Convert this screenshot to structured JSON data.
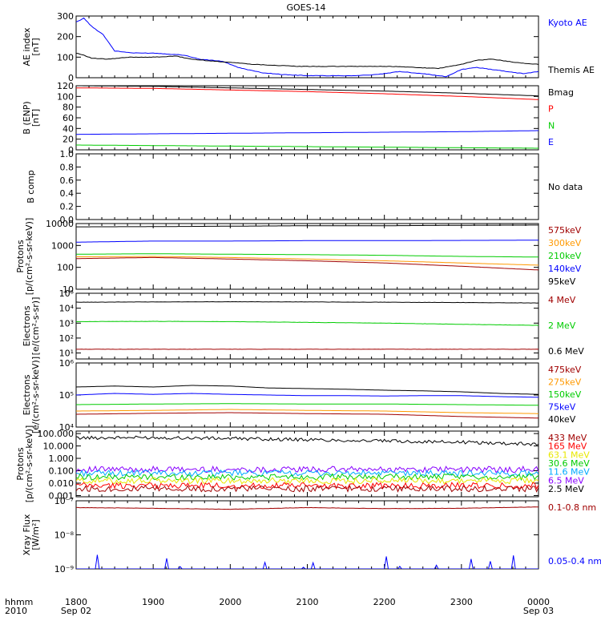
{
  "title": "GOES-14",
  "time_axis": {
    "row1_label": "hhmm",
    "row2_label": "2010",
    "ticks": [
      {
        "time": "1800",
        "date": "Sep 02"
      },
      {
        "time": "1900",
        "date": ""
      },
      {
        "time": "2000",
        "date": ""
      },
      {
        "time": "2100",
        "date": ""
      },
      {
        "time": "2200",
        "date": ""
      },
      {
        "time": "2300",
        "date": ""
      },
      {
        "time": "0000",
        "date": "Sep 03"
      }
    ],
    "range_hours": [
      18,
      24
    ]
  },
  "colors": {
    "black": "#000000",
    "blue": "#0000ff",
    "red": "#ff0000",
    "green": "#00cc00",
    "orange": "#ff9900",
    "darkred": "#a00000",
    "purple": "#8800ff",
    "cyan": "#00aaff",
    "yellow": "#e8e800",
    "magenta": "#aa00aa"
  },
  "chart_data": [
    {
      "id": "ae",
      "type": "line",
      "ylabel_lines": [
        "AE index",
        "[nT]"
      ],
      "ylim": [
        0,
        300
      ],
      "scale": "linear",
      "yticks": [
        "0",
        "100",
        "200",
        "300"
      ],
      "legend": [
        {
          "name": "Kyoto AE",
          "color": "blue"
        },
        {
          "name": "Themis AE",
          "color": "black"
        }
      ],
      "series": [
        {
          "name": "Kyoto AE",
          "color": "blue",
          "x": [
            18.0,
            18.1,
            18.2,
            18.35,
            18.5,
            18.75,
            19.0,
            19.2,
            19.4,
            19.6,
            19.9,
            20.1,
            20.4,
            20.7,
            21.0,
            21.3,
            21.6,
            21.9,
            22.2,
            22.5,
            22.8,
            23.0,
            23.2,
            23.4,
            23.6,
            23.8,
            24.0
          ],
          "y": [
            270,
            290,
            250,
            210,
            130,
            120,
            120,
            115,
            110,
            90,
            80,
            50,
            25,
            15,
            10,
            10,
            10,
            15,
            30,
            20,
            5,
            40,
            50,
            40,
            30,
            20,
            30
          ]
        },
        {
          "name": "Themis AE",
          "color": "black",
          "x": [
            18.0,
            18.1,
            18.2,
            18.4,
            18.7,
            19.0,
            19.3,
            19.5,
            19.8,
            20.0,
            20.3,
            20.6,
            20.9,
            21.2,
            21.5,
            21.8,
            22.1,
            22.4,
            22.7,
            23.0,
            23.2,
            23.4,
            23.6,
            23.8,
            24.0
          ],
          "y": [
            120,
            110,
            95,
            90,
            100,
            100,
            105,
            90,
            80,
            75,
            65,
            60,
            55,
            55,
            55,
            55,
            55,
            50,
            45,
            65,
            85,
            90,
            80,
            70,
            65
          ]
        }
      ]
    },
    {
      "id": "benp",
      "type": "line",
      "ylabel_lines": [
        "B (ENP)",
        "[nT]"
      ],
      "ylim": [
        0,
        120
      ],
      "scale": "linear",
      "yticks": [
        "0",
        "20",
        "40",
        "60",
        "80",
        "100",
        "120"
      ],
      "legend": [
        {
          "name": "Bmag",
          "color": "black"
        },
        {
          "name": "P",
          "color": "red"
        },
        {
          "name": "N",
          "color": "green"
        },
        {
          "name": "E",
          "color": "blue"
        }
      ],
      "series": [
        {
          "name": "Bmag",
          "color": "black",
          "x": [
            18.0,
            19.0,
            20.0,
            21.0,
            22.0,
            23.0,
            24.0
          ],
          "y": [
            120,
            119,
            116,
            113,
            110,
            106,
            101
          ]
        },
        {
          "name": "P",
          "color": "red",
          "x": [
            18.0,
            19.0,
            20.0,
            21.0,
            22.0,
            23.0,
            24.0
          ],
          "y": [
            116,
            115,
            112,
            109,
            105,
            100,
            94
          ]
        },
        {
          "name": "N",
          "color": "green",
          "x": [
            18.0,
            19.0,
            20.0,
            21.0,
            22.0,
            23.0,
            24.0
          ],
          "y": [
            9,
            8,
            7,
            6,
            5,
            4,
            3
          ]
        },
        {
          "name": "E",
          "color": "blue",
          "x": [
            18.0,
            19.0,
            20.0,
            21.0,
            22.0,
            23.0,
            24.0
          ],
          "y": [
            29,
            30,
            31,
            32,
            33,
            34,
            36
          ]
        }
      ]
    },
    {
      "id": "bcomp",
      "type": "line",
      "ylabel_lines": [
        "B comp"
      ],
      "ylim": [
        0,
        1
      ],
      "scale": "linear",
      "yticks": [
        "0.0",
        "0.2",
        "0.4",
        "0.6",
        "0.8",
        "1.0"
      ],
      "legend": [
        {
          "name": "No data",
          "color": "black"
        }
      ],
      "series": []
    },
    {
      "id": "protons1",
      "type": "line",
      "ylabel_lines": [
        "Protons",
        "[p/(cm²-s-sr-keV)]"
      ],
      "ylim": [
        1,
        4
      ],
      "scale": "log",
      "yticks": [
        "10",
        "100",
        "1000",
        "10000"
      ],
      "legend": [
        {
          "name": "575keV",
          "color": "darkred"
        },
        {
          "name": "300keV",
          "color": "orange"
        },
        {
          "name": "210keV",
          "color": "green"
        },
        {
          "name": "140keV",
          "color": "blue"
        },
        {
          "name": "95keV",
          "color": "black"
        }
      ],
      "series": [
        {
          "name": "95keV",
          "color": "black",
          "x": [
            18.0,
            19.0,
            20.0,
            21.0,
            22.0,
            23.0,
            24.0
          ],
          "y": [
            3.85,
            3.86,
            3.88,
            3.9,
            3.9,
            3.92,
            3.93
          ]
        },
        {
          "name": "140keV",
          "color": "blue",
          "x": [
            18.0,
            19.0,
            20.0,
            21.0,
            22.0,
            23.0,
            24.0
          ],
          "y": [
            3.15,
            3.2,
            3.2,
            3.22,
            3.22,
            3.23,
            3.24
          ]
        },
        {
          "name": "210keV",
          "color": "green",
          "x": [
            18.0,
            19.0,
            20.0,
            21.0,
            22.0,
            23.0,
            24.0
          ],
          "y": [
            2.6,
            2.62,
            2.6,
            2.58,
            2.55,
            2.5,
            2.47
          ]
        },
        {
          "name": "300keV",
          "color": "orange",
          "x": [
            18.0,
            19.0,
            20.0,
            21.0,
            22.0,
            23.0,
            24.0
          ],
          "y": [
            2.48,
            2.5,
            2.45,
            2.38,
            2.3,
            2.2,
            2.1
          ]
        },
        {
          "name": "575keV",
          "color": "darkred",
          "x": [
            18.0,
            19.0,
            20.0,
            21.0,
            22.0,
            23.0,
            24.0
          ],
          "y": [
            2.4,
            2.45,
            2.38,
            2.3,
            2.2,
            2.05,
            1.88
          ]
        }
      ]
    },
    {
      "id": "electrons1",
      "type": "line",
      "ylabel_lines": [
        "Electrons",
        "[e/(cm²-s-sr)]"
      ],
      "ylim": [
        0.6,
        5
      ],
      "scale": "log",
      "yticks": [
        "10¹",
        "10²",
        "10³",
        "10⁴",
        "10⁵"
      ],
      "legend": [
        {
          "name": "4 MeV",
          "color": "darkred"
        },
        {
          "name": "2 MeV",
          "color": "green"
        },
        {
          "name": "0.6 MeV",
          "color": "black"
        }
      ],
      "series": [
        {
          "name": "0.6 MeV",
          "color": "black",
          "x": [
            18.0,
            19.0,
            20.0,
            21.0,
            22.0,
            23.0,
            24.0
          ],
          "y": [
            4.4,
            4.42,
            4.43,
            4.42,
            4.4,
            4.38,
            4.35
          ]
        },
        {
          "name": "2 MeV",
          "color": "green",
          "x": [
            18.0,
            19.0,
            20.0,
            21.0,
            22.0,
            23.0,
            24.0
          ],
          "y": [
            3.1,
            3.12,
            3.1,
            3.05,
            3.0,
            2.92,
            2.85
          ]
        },
        {
          "name": "4 MeV",
          "color": "darkred",
          "x": [
            18.0,
            24.0
          ],
          "y": [
            1.25,
            1.25
          ]
        }
      ]
    },
    {
      "id": "electrons2",
      "type": "line",
      "ylabel_lines": [
        "Electrons",
        "[e/(cm²-s-sr-keV)]"
      ],
      "ylim": [
        4,
        6
      ],
      "scale": "log",
      "yticks": [
        "10⁴",
        "10⁵",
        "10⁶"
      ],
      "legend": [
        {
          "name": "475keV",
          "color": "darkred"
        },
        {
          "name": "275keV",
          "color": "orange"
        },
        {
          "name": "150keV",
          "color": "green"
        },
        {
          "name": "75keV",
          "color": "blue"
        },
        {
          "name": "40keV",
          "color": "black"
        }
      ],
      "series": [
        {
          "name": "40keV",
          "color": "black",
          "x": [
            18.0,
            18.5,
            19.0,
            19.5,
            20.0,
            20.5,
            21.0,
            21.5,
            22.0,
            22.5,
            23.0,
            23.5,
            24.0
          ],
          "y": [
            5.25,
            5.28,
            5.25,
            5.3,
            5.28,
            5.22,
            5.2,
            5.18,
            5.15,
            5.13,
            5.1,
            5.05,
            5.02
          ]
        },
        {
          "name": "75keV",
          "color": "blue",
          "x": [
            18.0,
            18.5,
            19.0,
            19.5,
            20.0,
            20.5,
            21.0,
            21.5,
            22.0,
            22.5,
            23.0,
            23.5,
            24.0
          ],
          "y": [
            5.0,
            5.05,
            5.02,
            5.05,
            5.02,
            5.0,
            4.98,
            4.98,
            4.97,
            4.98,
            4.98,
            4.95,
            4.93
          ]
        },
        {
          "name": "150keV",
          "color": "green",
          "x": [
            18.0,
            19.0,
            20.0,
            21.0,
            22.0,
            23.0,
            24.0
          ],
          "y": [
            4.7,
            4.72,
            4.73,
            4.72,
            4.72,
            4.7,
            4.68
          ]
        },
        {
          "name": "275keV",
          "color": "orange",
          "x": [
            18.0,
            19.0,
            20.0,
            21.0,
            22.0,
            23.0,
            24.0
          ],
          "y": [
            4.5,
            4.52,
            4.55,
            4.52,
            4.5,
            4.45,
            4.42
          ]
        },
        {
          "name": "475keV",
          "color": "darkred",
          "x": [
            18.0,
            19.0,
            20.0,
            21.0,
            22.0,
            23.0,
            24.0
          ],
          "y": [
            4.4,
            4.43,
            4.45,
            4.42,
            4.4,
            4.33,
            4.28
          ]
        }
      ]
    },
    {
      "id": "protons2",
      "type": "line",
      "ylabel_lines": [
        "Protons",
        "[p/(cm²-s-sr-keV)]"
      ],
      "ylim": [
        -3.1,
        2.2
      ],
      "scale": "log",
      "yticks": [
        "0.001",
        "0.010",
        "0.100",
        "1.000",
        "10.000",
        "100.000"
      ],
      "legend": [
        {
          "name": "433 MeV",
          "color": "darkred"
        },
        {
          "name": "165 MeV",
          "color": "red"
        },
        {
          "name": "63.1 MeV",
          "color": "yellow"
        },
        {
          "name": "30.6 MeV",
          "color": "green"
        },
        {
          "name": "11.6 MeV",
          "color": "cyan"
        },
        {
          "name": "6.5 MeV",
          "color": "purple"
        },
        {
          "name": "2.5 MeV",
          "color": "black"
        }
      ],
      "series": [
        {
          "name": "2.5 MeV",
          "color": "black",
          "x": [
            18.0,
            19.0,
            20.0,
            21.0,
            22.0,
            23.0,
            24.0
          ],
          "y": [
            1.65,
            1.68,
            1.6,
            1.5,
            1.4,
            1.3,
            1.15
          ]
        },
        {
          "name": "6.5 MeV",
          "color": "purple",
          "x": [
            18.0,
            24.0
          ],
          "y": [
            -0.9,
            -0.9
          ]
        },
        {
          "name": "11.6 MeV",
          "color": "cyan",
          "x": [
            18.0,
            24.0
          ],
          "y": [
            -1.2,
            -1.2
          ]
        },
        {
          "name": "30.6 MeV",
          "color": "green",
          "x": [
            18.0,
            24.0
          ],
          "y": [
            -1.5,
            -1.5
          ]
        },
        {
          "name": "63.1 MeV",
          "color": "yellow",
          "x": [
            18.0,
            24.0
          ],
          "y": [
            -1.8,
            -1.8
          ]
        },
        {
          "name": "165 MeV",
          "color": "red",
          "x": [
            18.0,
            24.0
          ],
          "y": [
            -2.2,
            -2.2
          ]
        },
        {
          "name": "433 MeV",
          "color": "darkred",
          "x": [
            18.0,
            24.0
          ],
          "y": [
            -2.45,
            -2.45
          ]
        }
      ]
    },
    {
      "id": "xray",
      "type": "line",
      "ylabel_lines": [
        "Xray Flux",
        "[W/m²]"
      ],
      "ylim": [
        -9,
        -7
      ],
      "scale": "log",
      "yticks": [
        "10⁻⁹",
        "10⁻⁸",
        "10⁻⁷"
      ],
      "legend": [
        {
          "name": "0.1-0.8 nm",
          "color": "darkred"
        },
        {
          "name": "0.05-0.4 nm",
          "color": "blue"
        }
      ],
      "series": [
        {
          "name": "0.1-0.8 nm",
          "color": "darkred",
          "x": [
            18.0,
            19.0,
            20.0,
            21.0,
            22.0,
            23.0,
            24.0
          ],
          "y": [
            -7.2,
            -7.22,
            -7.25,
            -7.2,
            -7.23,
            -7.22,
            -7.18
          ]
        },
        {
          "name": "0.05-0.4 nm",
          "color": "blue",
          "x": [
            18.0,
            24.0
          ],
          "y": [
            -9.0,
            -9.0
          ]
        }
      ]
    }
  ]
}
